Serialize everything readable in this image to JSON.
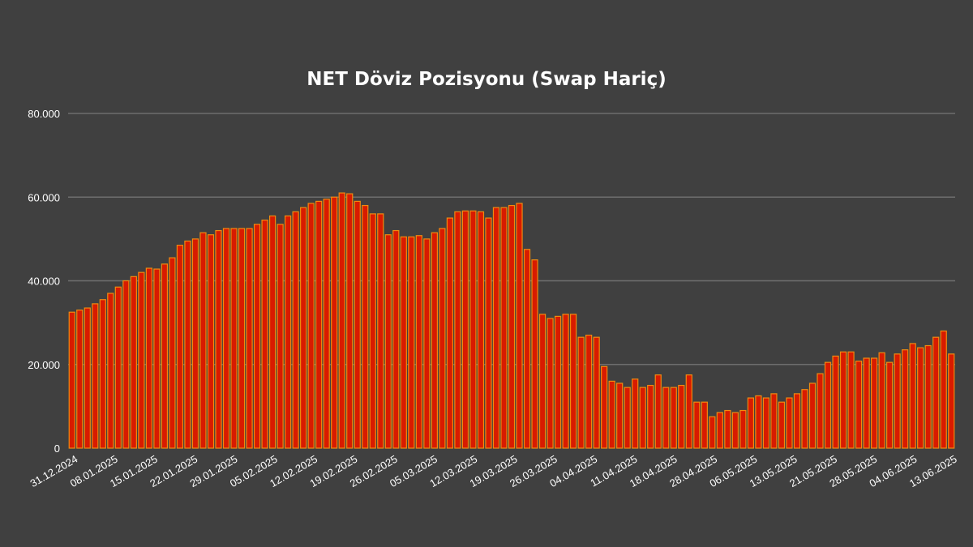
{
  "chart_data": {
    "type": "bar",
    "title": "NET Döviz Pozisyonu (Swap Hariç)",
    "xlabel": "",
    "ylabel": "",
    "ylim": [
      0,
      80000
    ],
    "y_ticks": [
      "0",
      "20.000",
      "40.000",
      "60.000",
      "80.000"
    ],
    "grid": true,
    "x_tick_labels": [
      "31.12.2024",
      "08.01.2025",
      "15.01.2025",
      "22.01.2025",
      "29.01.2025",
      "05.02.2025",
      "12.02.2025",
      "19.02.2025",
      "26.02.2025",
      "05.03.2025",
      "12.03.2025",
      "19.03.2025",
      "26.03.2025",
      "04.04.2025",
      "11.04.2025",
      "18.04.2025",
      "28.04.2025",
      "06.05.2025",
      "13.05.2025",
      "21.05.2025",
      "28.05.2025",
      "04.06.2025",
      "13.06.2025"
    ],
    "colors": {
      "bar_fill": "#d81b00",
      "bar_edge": "#f08a10",
      "background": "#404040",
      "grid": "#6e6e6e",
      "text": "#ffffff"
    },
    "values": [
      32500,
      33000,
      33500,
      34500,
      35500,
      37000,
      38500,
      40000,
      41000,
      42000,
      43000,
      42800,
      44000,
      45500,
      48500,
      49500,
      50000,
      51500,
      51000,
      52000,
      52500,
      52500,
      52500,
      52500,
      53500,
      54500,
      55500,
      53500,
      55500,
      56500,
      57500,
      58500,
      59000,
      59500,
      60000,
      61000,
      60800,
      59000,
      58000,
      56000,
      56000,
      51000,
      52000,
      50500,
      50500,
      50800,
      50000,
      51500,
      52500,
      55000,
      56500,
      56700,
      56700,
      56500,
      55000,
      57500,
      57500,
      58000,
      58500,
      47500,
      45000,
      32000,
      31000,
      31500,
      32000,
      32000,
      26500,
      27000,
      26500,
      19500,
      16000,
      15500,
      14500,
      16500,
      14500,
      15000,
      17500,
      14500,
      14500,
      15000,
      17500,
      11000,
      11000,
      7500,
      8500,
      9000,
      8500,
      9000,
      12000,
      12500,
      12000,
      13000,
      11000,
      12000,
      13000,
      14000,
      15500,
      17800,
      20500,
      22000,
      23000,
      23000,
      20800,
      21500,
      21500,
      22800,
      20500,
      22500,
      23500,
      25000,
      24000,
      24500,
      26500,
      28000,
      22500
    ]
  }
}
